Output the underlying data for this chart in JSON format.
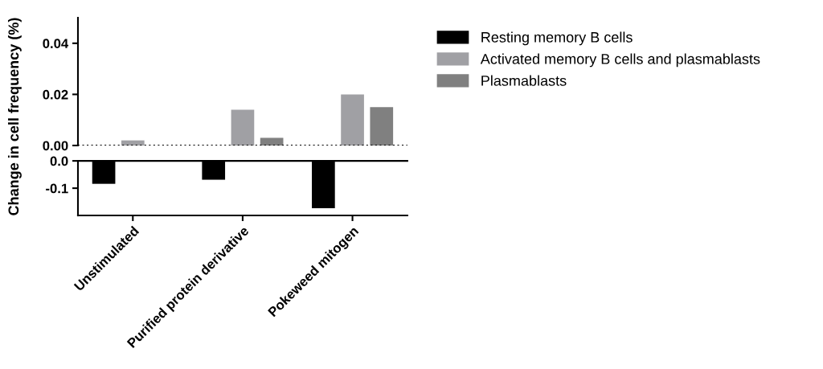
{
  "chart_data": [
    {
      "type": "bar",
      "ylabel": "Change in cell frequency (%)",
      "categories": [
        null,
        null,
        null
      ],
      "ylim": [
        0,
        0.05
      ],
      "yticks": [
        {
          "value": 0,
          "label": "0.00"
        },
        {
          "value": 0.02,
          "label": "0.02"
        },
        {
          "value": 0.04,
          "label": "0.04"
        }
      ],
      "tick_labels": "y",
      "legend": "right",
      "ref_lines": [
        {
          "axis": "y",
          "value": 0,
          "line_style": "dotted",
          "color": "#000000"
        }
      ],
      "series": [
        {
          "name": "Resting memory B cells",
          "color": "#000000",
          "values": [
            null,
            null,
            null
          ]
        },
        {
          "name": "Activated memory B cells and plasmablasts",
          "color": "#a0a0a4",
          "values": [
            0.002,
            0.014,
            0.02
          ]
        },
        {
          "name": "Plasmablasts",
          "color": "#808080",
          "values": [
            null,
            0.003,
            0.015
          ]
        }
      ]
    },
    {
      "type": "bar",
      "categories": [
        "Unstimulated",
        "Purified protein derivative",
        "Pokeweed mitogen"
      ],
      "ylim": [
        -0.2,
        0
      ],
      "yticks": [
        {
          "value": 0,
          "label": "0.0"
        },
        {
          "value": -0.1,
          "label": "-0.1"
        }
      ],
      "series": [
        {
          "color": "#000000",
          "values": [
            -0.084,
            -0.069,
            -0.173
          ]
        },
        {
          "values": [
            null,
            null,
            null
          ]
        },
        {
          "values": [
            null,
            null,
            null
          ]
        }
      ]
    }
  ]
}
